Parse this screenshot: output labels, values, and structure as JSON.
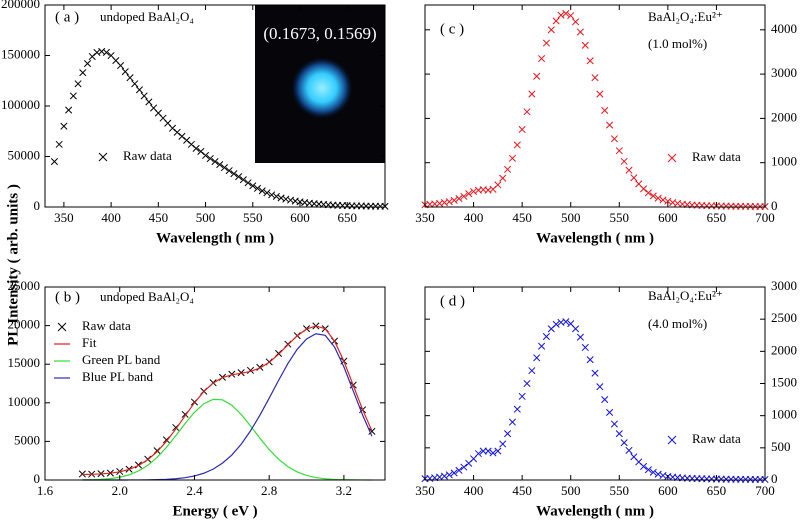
{
  "shared_ylabel": "PL Intensity ( arb. units )",
  "chart_data": [
    {
      "type": "scatter",
      "panel_label": "( a )",
      "annotations": [
        "undoped BaAl₂O₄"
      ],
      "inset_text": "(0.1673, 0.1569)",
      "xlabel": "Wavelength ( nm )",
      "xlim": [
        330,
        690
      ],
      "xticks": [
        350,
        400,
        450,
        500,
        550,
        600,
        650
      ],
      "ylim": [
        0,
        200000
      ],
      "yticks": [
        0,
        50000,
        100000,
        150000,
        200000
      ],
      "yaxis_side": "left",
      "legend": true,
      "x": [
        340,
        345,
        350,
        355,
        360,
        365,
        370,
        375,
        380,
        385,
        390,
        395,
        400,
        405,
        410,
        415,
        420,
        425,
        430,
        435,
        440,
        445,
        450,
        455,
        460,
        465,
        470,
        475,
        480,
        485,
        490,
        495,
        500,
        505,
        510,
        515,
        520,
        525,
        530,
        535,
        540,
        545,
        550,
        555,
        560,
        565,
        570,
        575,
        580,
        585,
        590,
        595,
        600,
        605,
        610,
        615,
        620,
        625,
        630,
        635,
        640,
        645,
        650,
        655,
        660,
        665,
        670,
        675,
        680,
        685,
        690
      ],
      "series": [
        {
          "name": "Raw data",
          "color": "#000000",
          "mode": "markers",
          "values": [
            45000,
            62000,
            80000,
            96000,
            110000,
            122000,
            133000,
            142000,
            149000,
            153000,
            154000,
            153000,
            150000,
            145000,
            140000,
            134000,
            128000,
            122000,
            116000,
            110000,
            104000,
            98000,
            93000,
            88000,
            83000,
            78000,
            74000,
            70000,
            66000,
            62000,
            58000,
            55000,
            51000,
            48000,
            45000,
            42000,
            39000,
            36000,
            33000,
            30000,
            27000,
            24000,
            21000,
            18500,
            16000,
            14000,
            12000,
            10500,
            9000,
            7800,
            6800,
            5900,
            5100,
            4400,
            3800,
            3300,
            2900,
            2500,
            2200,
            1900,
            1700,
            1500,
            1300,
            1200,
            1100,
            1000,
            900,
            850,
            800,
            750,
            700
          ]
        }
      ]
    },
    {
      "type": "scatter",
      "panel_label": "( b )",
      "annotations": [
        "undoped BaAl₂O₄"
      ],
      "xlabel": "Energy ( eV )",
      "xlim": [
        1.6,
        3.42
      ],
      "xticks": [
        1.6,
        {
          "value": 2,
          "label": "2.0"
        },
        2.4,
        2.8,
        3.2
      ],
      "ylim": [
        0,
        25000
      ],
      "yticks": [
        0,
        5000,
        10000,
        15000,
        20000,
        25000
      ],
      "yaxis_side": "left",
      "legend": true,
      "x": [
        1.8,
        1.85,
        1.9,
        1.95,
        2.0,
        2.05,
        2.1,
        2.15,
        2.2,
        2.25,
        2.3,
        2.35,
        2.4,
        2.45,
        2.5,
        2.55,
        2.6,
        2.65,
        2.7,
        2.75,
        2.8,
        2.85,
        2.9,
        2.95,
        3.0,
        3.05,
        3.1,
        3.15,
        3.2,
        3.25,
        3.3,
        3.35
      ],
      "series": [
        {
          "name": "Raw data",
          "color": "#000000",
          "mode": "markers",
          "values": [
            780,
            760,
            820,
            900,
            1100,
            1400,
            1950,
            2700,
            3800,
            5200,
            6800,
            8500,
            10100,
            11500,
            12600,
            13300,
            13700,
            13900,
            14200,
            14600,
            15300,
            16400,
            17600,
            18700,
            19600,
            19950,
            19600,
            18000,
            15400,
            12300,
            9100,
            6300
          ]
        },
        {
          "name": "Fit",
          "color": "#e02020",
          "mode": "lines",
          "values": [
            716,
            738,
            786,
            882,
            1059,
            1367,
            1873,
            2621,
            3664,
            5012,
            6599,
            8317,
            9996,
            11451,
            12556,
            13270,
            13623,
            13832,
            14066,
            14502,
            15241,
            16283,
            17509,
            18672,
            19560,
            19954,
            19597,
            17994,
            15382,
            12254,
            9125,
            6362
          ]
        },
        {
          "name": "Green PL band",
          "color": "#33dd33",
          "mode": "lines",
          "values": [
            16,
            38,
            86,
            181,
            357,
            662,
            1163,
            1899,
            2920,
            4225,
            5733,
            7317,
            8771,
            9878,
            10448,
            10385,
            9693,
            8502,
            7006,
            5422,
            3941,
            2693,
            1729,
            1042,
            590,
            314,
            157,
            74,
            32,
            14,
            5,
            2
          ]
        },
        {
          "name": "Blue PL band",
          "color": "#2b2bb0",
          "mode": "lines",
          "values": [
            0,
            0,
            0,
            1,
            2,
            5,
            10,
            22,
            44,
            87,
            166,
            300,
            525,
            873,
            1408,
            2185,
            3230,
            4630,
            6360,
            8380,
            10600,
            12890,
            15080,
            16930,
            18270,
            18940,
            18740,
            17220,
            14650,
            11540,
            8420,
            5660
          ]
        }
      ]
    },
    {
      "type": "scatter",
      "panel_label": "( c )",
      "annotations": [
        "BaAl₂O₄:Eu²⁺",
        "(1.0 mol%)"
      ],
      "xlabel": "Wavelength ( nm )",
      "xlim": [
        350,
        700
      ],
      "xticks": [
        350,
        400,
        450,
        500,
        550,
        600,
        650,
        700
      ],
      "ylim": [
        0,
        4560
      ],
      "yticks": [
        0,
        1000,
        2000,
        3000,
        4000
      ],
      "yaxis_side": "right",
      "legend": true,
      "x": [
        350,
        355,
        360,
        365,
        370,
        375,
        380,
        385,
        390,
        395,
        400,
        405,
        410,
        415,
        420,
        425,
        430,
        435,
        440,
        445,
        450,
        455,
        460,
        465,
        470,
        475,
        480,
        485,
        490,
        495,
        500,
        505,
        510,
        515,
        520,
        525,
        530,
        535,
        540,
        545,
        550,
        555,
        560,
        565,
        570,
        575,
        580,
        585,
        590,
        595,
        600,
        605,
        610,
        615,
        620,
        625,
        630,
        635,
        640,
        645,
        650,
        655,
        660,
        665,
        670,
        675,
        680,
        685,
        690,
        695,
        700
      ],
      "series": [
        {
          "name": "Raw data",
          "color": "#e8141c",
          "mode": "markers",
          "values": [
            50,
            60,
            70,
            80,
            100,
            120,
            150,
            190,
            240,
            300,
            350,
            380,
            390,
            380,
            400,
            500,
            650,
            850,
            1100,
            1400,
            1750,
            2150,
            2550,
            2950,
            3350,
            3700,
            4000,
            4200,
            4330,
            4370,
            4320,
            4180,
            3950,
            3650,
            3300,
            2920,
            2550,
            2180,
            1850,
            1540,
            1270,
            1030,
            830,
            660,
            520,
            410,
            320,
            250,
            200,
            160,
            130,
            100,
            80,
            65,
            55,
            45,
            40,
            35,
            30,
            28,
            25,
            22,
            20,
            18,
            16,
            15,
            14,
            13,
            12,
            11,
            10
          ]
        }
      ]
    },
    {
      "type": "scatter",
      "panel_label": "( d )",
      "annotations": [
        "BaAl₂O₄:Eu²⁺",
        "(4.0 mol%)"
      ],
      "xlabel": "Wavelength ( nm )",
      "xlim": [
        350,
        700
      ],
      "xticks": [
        350,
        400,
        450,
        500,
        550,
        600,
        650,
        700
      ],
      "ylim": [
        0,
        3000
      ],
      "yticks": [
        0,
        500,
        1000,
        1500,
        2000,
        2500,
        3000
      ],
      "yaxis_side": "right",
      "legend": true,
      "x": [
        350,
        355,
        360,
        365,
        370,
        375,
        380,
        385,
        390,
        395,
        400,
        405,
        410,
        415,
        420,
        425,
        430,
        435,
        440,
        445,
        450,
        455,
        460,
        465,
        470,
        475,
        480,
        485,
        490,
        495,
        500,
        505,
        510,
        515,
        520,
        525,
        530,
        535,
        540,
        545,
        550,
        555,
        560,
        565,
        570,
        575,
        580,
        585,
        590,
        595,
        600,
        605,
        610,
        615,
        620,
        625,
        630,
        635,
        640,
        645,
        650,
        655,
        660,
        665,
        670,
        675,
        680,
        685,
        690,
        695,
        700
      ],
      "series": [
        {
          "name": "Raw data",
          "color": "#1010e0",
          "mode": "markers",
          "values": [
            20,
            25,
            35,
            45,
            60,
            80,
            110,
            150,
            200,
            260,
            330,
            410,
            450,
            450,
            420,
            450,
            560,
            720,
            900,
            1100,
            1300,
            1500,
            1700,
            1900,
            2080,
            2230,
            2350,
            2420,
            2450,
            2460,
            2430,
            2350,
            2220,
            2060,
            1870,
            1660,
            1450,
            1250,
            1050,
            870,
            720,
            580,
            460,
            360,
            280,
            210,
            160,
            120,
            90,
            70,
            55,
            45,
            38,
            32,
            28,
            25,
            22,
            20,
            18,
            16,
            15,
            14,
            13,
            12,
            11,
            10,
            10,
            9,
            9,
            8,
            8
          ]
        }
      ]
    }
  ]
}
